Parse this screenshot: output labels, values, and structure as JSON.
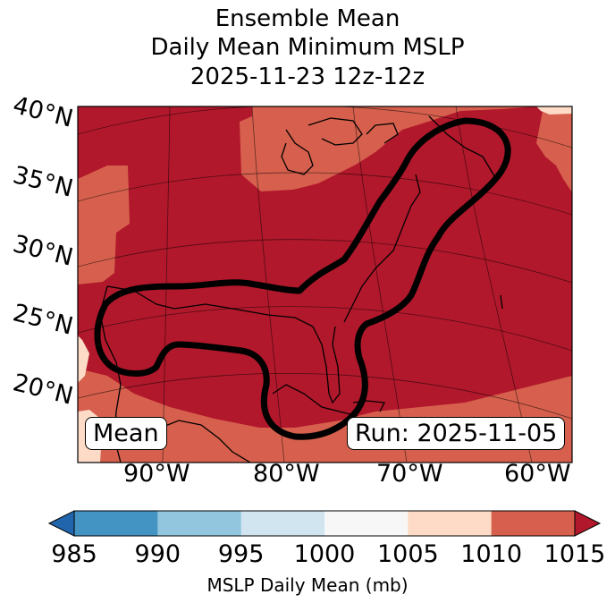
{
  "title": {
    "line1": "Ensemble Mean",
    "line2": "Daily Mean Minimum MSLP",
    "line3": "2025-11-23 12z-12z"
  },
  "map": {
    "lat_labels": [
      "40°N",
      "35°N",
      "30°N",
      "25°N",
      "20°N"
    ],
    "lon_labels": [
      "90°W",
      "80°W",
      "70°W",
      "60°W"
    ],
    "mean_label": "Mean",
    "run_label": "Run: 2025-11-05",
    "fill_colors": {
      "below_1010_band": "#fddbc7",
      "band_1010_1015": "#d6604d",
      "above_1015": "#b2182b"
    }
  },
  "colorbar": {
    "ticks": [
      "985",
      "990",
      "995",
      "1000",
      "1005",
      "1010",
      "1015"
    ],
    "colors": [
      "#2166ac",
      "#4393c3",
      "#92c5de",
      "#d1e5f0",
      "#f7f7f7",
      "#fddbc7",
      "#d6604d",
      "#b2182b"
    ],
    "label": "MSLP Daily Mean (mb)"
  }
}
